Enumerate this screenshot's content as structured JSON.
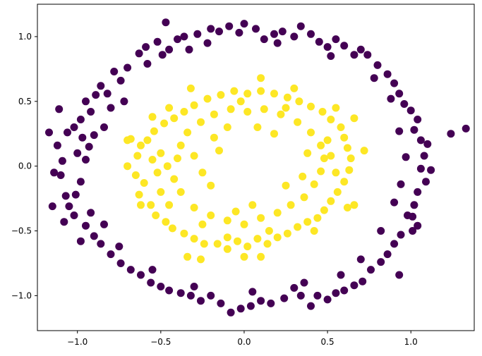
{
  "chart_data": {
    "type": "scatter",
    "title": "",
    "xlabel": "",
    "ylabel": "",
    "xlim": [
      -1.24,
      1.38
    ],
    "ylim": [
      -1.27,
      1.25
    ],
    "grid": false,
    "legend": "none",
    "x_ticks": [
      -1.0,
      -0.5,
      0.0,
      0.5,
      1.0
    ],
    "x_tick_labels": [
      "−1.0",
      "−0.5",
      "0.0",
      "0.5",
      "1.0"
    ],
    "y_ticks": [
      -1.0,
      -0.5,
      0.0,
      0.5,
      1.0
    ],
    "y_tick_labels": [
      "−1.0",
      "−0.5",
      "0.0",
      "0.5",
      "1.0"
    ],
    "series": [
      {
        "color": "#440154",
        "points": [
          [
            -1.17,
            0.26
          ],
          [
            -1.12,
            0.16
          ],
          [
            -1.09,
            0.04
          ],
          [
            -1.1,
            -0.07
          ],
          [
            -1.07,
            -0.23
          ],
          [
            -1.15,
            -0.31
          ],
          [
            -1.14,
            -0.05
          ],
          [
            -1.05,
            -0.31
          ],
          [
            -1.02,
            -0.38
          ],
          [
            -1.08,
            -0.43
          ],
          [
            -1.01,
            -0.22
          ],
          [
            -0.98,
            -0.12
          ],
          [
            -0.95,
            0.05
          ],
          [
            -0.93,
            0.15
          ],
          [
            -1.06,
            0.26
          ],
          [
            -1.02,
            0.3
          ],
          [
            -0.98,
            0.36
          ],
          [
            -0.92,
            0.42
          ],
          [
            -1.11,
            0.44
          ],
          [
            -0.95,
            0.5
          ],
          [
            -0.89,
            0.55
          ],
          [
            -0.86,
            0.62
          ],
          [
            -0.82,
            0.56
          ],
          [
            -0.78,
            0.73
          ],
          [
            -0.74,
            0.66
          ],
          [
            -0.7,
            0.76
          ],
          [
            -0.63,
            0.87
          ],
          [
            -0.59,
            0.92
          ],
          [
            -0.52,
            0.96
          ],
          [
            -0.49,
            0.86
          ],
          [
            -0.47,
            1.11
          ],
          [
            -0.4,
            0.98
          ],
          [
            -0.36,
            1.0
          ],
          [
            -0.33,
            0.9
          ],
          [
            -0.28,
            1.02
          ],
          [
            -0.2,
            1.06
          ],
          [
            -0.15,
            1.04
          ],
          [
            -0.09,
            1.08
          ],
          [
            -0.03,
            1.03
          ],
          [
            0.0,
            1.1
          ],
          [
            0.07,
            1.06
          ],
          [
            0.12,
            0.98
          ],
          [
            0.18,
            1.02
          ],
          [
            0.23,
            1.04
          ],
          [
            0.3,
            1.0
          ],
          [
            0.34,
            1.08
          ],
          [
            0.4,
            1.02
          ],
          [
            0.45,
            0.96
          ],
          [
            0.5,
            0.92
          ],
          [
            0.55,
            0.98
          ],
          [
            0.6,
            0.93
          ],
          [
            0.66,
            0.86
          ],
          [
            0.7,
            0.9
          ],
          [
            0.74,
            0.86
          ],
          [
            0.8,
            0.78
          ],
          [
            0.86,
            0.71
          ],
          [
            0.9,
            0.64
          ],
          [
            0.93,
            0.56
          ],
          [
            0.96,
            0.48
          ],
          [
            1.0,
            0.43
          ],
          [
            1.04,
            0.36
          ],
          [
            1.02,
            0.28
          ],
          [
            1.06,
            0.2
          ],
          [
            1.1,
            0.17
          ],
          [
            1.08,
            0.08
          ],
          [
            1.06,
            -0.02
          ],
          [
            1.12,
            -0.03
          ],
          [
            1.09,
            -0.12
          ],
          [
            1.04,
            -0.2
          ],
          [
            1.02,
            -0.3
          ],
          [
            1.01,
            -0.39
          ],
          [
            1.04,
            -0.46
          ],
          [
            1.01,
            -0.5
          ],
          [
            0.98,
            -0.38
          ],
          [
            0.94,
            -0.53
          ],
          [
            0.9,
            -0.6
          ],
          [
            0.86,
            -0.68
          ],
          [
            0.82,
            -0.74
          ],
          [
            0.76,
            -0.8
          ],
          [
            0.71,
            -0.89
          ],
          [
            0.66,
            -0.92
          ],
          [
            0.6,
            -0.96
          ],
          [
            0.55,
            -0.98
          ],
          [
            0.5,
            -1.03
          ],
          [
            0.44,
            -1.0
          ],
          [
            0.4,
            -1.08
          ],
          [
            0.34,
            -1.0
          ],
          [
            0.3,
            -0.94
          ],
          [
            0.24,
            -1.02
          ],
          [
            0.16,
            -1.06
          ],
          [
            0.1,
            -1.04
          ],
          [
            0.04,
            -1.08
          ],
          [
            -0.02,
            -1.1
          ],
          [
            -0.08,
            -1.13
          ],
          [
            -0.14,
            -1.06
          ],
          [
            -0.2,
            -1.0
          ],
          [
            -0.26,
            -1.04
          ],
          [
            -0.32,
            -1.0
          ],
          [
            -0.38,
            -0.98
          ],
          [
            -0.45,
            -0.96
          ],
          [
            -0.5,
            -0.93
          ],
          [
            -0.56,
            -0.9
          ],
          [
            -0.62,
            -0.84
          ],
          [
            -0.68,
            -0.8
          ],
          [
            -0.74,
            -0.75
          ],
          [
            -0.8,
            -0.68
          ],
          [
            -0.86,
            -0.6
          ],
          [
            -0.9,
            -0.54
          ],
          [
            -0.95,
            -0.46
          ],
          [
            -0.98,
            -0.58
          ],
          [
            -0.92,
            -0.36
          ],
          [
            -1.0,
            0.1
          ],
          [
            -0.97,
            0.22
          ],
          [
            -0.9,
            0.24
          ],
          [
            -0.84,
            0.3
          ],
          [
            -0.8,
            0.45
          ],
          [
            -0.72,
            0.5
          ],
          [
            -0.58,
            0.79
          ],
          [
            -0.45,
            0.9
          ],
          [
            -0.22,
            0.95
          ],
          [
            0.2,
            0.95
          ],
          [
            0.52,
            0.85
          ],
          [
            0.78,
            0.68
          ],
          [
            0.88,
            0.52
          ],
          [
            0.93,
            0.27
          ],
          [
            0.97,
            0.07
          ],
          [
            0.94,
            -0.14
          ],
          [
            0.9,
            -0.28
          ],
          [
            0.82,
            -0.5
          ],
          [
            0.7,
            -0.72
          ],
          [
            0.58,
            -0.84
          ],
          [
            0.36,
            -0.9
          ],
          [
            0.05,
            -0.97
          ],
          [
            -0.3,
            -0.93
          ],
          [
            -0.55,
            -0.8
          ],
          [
            -0.75,
            -0.62
          ],
          [
            -0.84,
            -0.45
          ],
          [
            1.24,
            0.25
          ],
          [
            1.33,
            0.29
          ],
          [
            0.93,
            -0.84
          ]
        ]
      },
      {
        "color": "#fde725",
        "points": [
          [
            -0.68,
            0.21
          ],
          [
            -0.62,
            0.16
          ],
          [
            -0.64,
            0.08
          ],
          [
            -0.7,
            0.0
          ],
          [
            -0.65,
            -0.07
          ],
          [
            -0.6,
            -0.13
          ],
          [
            -0.63,
            -0.22
          ],
          [
            -0.56,
            -0.3
          ],
          [
            -0.53,
            -0.38
          ],
          [
            -0.47,
            -0.43
          ],
          [
            -0.43,
            -0.48
          ],
          [
            -0.36,
            -0.52
          ],
          [
            -0.3,
            -0.56
          ],
          [
            -0.24,
            -0.6
          ],
          [
            -0.16,
            -0.6
          ],
          [
            -0.1,
            -0.64
          ],
          [
            -0.04,
            -0.58
          ],
          [
            0.02,
            -0.62
          ],
          [
            0.08,
            -0.56
          ],
          [
            0.14,
            -0.6
          ],
          [
            0.2,
            -0.55
          ],
          [
            0.26,
            -0.52
          ],
          [
            0.32,
            -0.47
          ],
          [
            0.38,
            -0.43
          ],
          [
            0.44,
            -0.4
          ],
          [
            0.48,
            -0.34
          ],
          [
            0.52,
            -0.27
          ],
          [
            0.56,
            -0.2
          ],
          [
            0.6,
            -0.12
          ],
          [
            0.63,
            -0.03
          ],
          [
            0.64,
            0.06
          ],
          [
            0.62,
            0.14
          ],
          [
            0.6,
            0.22
          ],
          [
            0.58,
            0.3
          ],
          [
            0.52,
            0.36
          ],
          [
            0.47,
            0.42
          ],
          [
            0.4,
            0.46
          ],
          [
            0.33,
            0.5
          ],
          [
            0.26,
            0.53
          ],
          [
            0.18,
            0.56
          ],
          [
            0.1,
            0.58
          ],
          [
            0.02,
            0.56
          ],
          [
            -0.06,
            0.58
          ],
          [
            -0.14,
            0.55
          ],
          [
            -0.22,
            0.52
          ],
          [
            -0.3,
            0.47
          ],
          [
            -0.36,
            0.42
          ],
          [
            -0.42,
            0.37
          ],
          [
            -0.48,
            0.33
          ],
          [
            -0.54,
            0.27
          ],
          [
            -0.58,
            0.2
          ],
          [
            -0.5,
            0.1
          ],
          [
            -0.46,
            0.0
          ],
          [
            -0.42,
            -0.1
          ],
          [
            -0.38,
            -0.2
          ],
          [
            -0.3,
            -0.32
          ],
          [
            -0.2,
            -0.38
          ],
          [
            -0.1,
            -0.42
          ],
          [
            0.0,
            -0.45
          ],
          [
            0.1,
            -0.4
          ],
          [
            0.2,
            -0.36
          ],
          [
            0.28,
            -0.3
          ],
          [
            0.36,
            -0.24
          ],
          [
            0.42,
            -0.14
          ],
          [
            0.46,
            -0.04
          ],
          [
            0.48,
            0.06
          ],
          [
            0.46,
            0.16
          ],
          [
            0.4,
            0.26
          ],
          [
            0.32,
            0.34
          ],
          [
            0.22,
            0.4
          ],
          [
            0.12,
            0.44
          ],
          [
            0.02,
            0.42
          ],
          [
            -0.08,
            0.44
          ],
          [
            -0.18,
            0.4
          ],
          [
            -0.26,
            0.34
          ],
          [
            -0.34,
            0.26
          ],
          [
            -0.38,
            0.16
          ],
          [
            -0.4,
            0.06
          ],
          [
            -0.3,
            0.08
          ],
          [
            -0.25,
            -0.05
          ],
          [
            -0.2,
            -0.15
          ],
          [
            -0.55,
            0.05
          ],
          [
            -0.52,
            -0.05
          ],
          [
            -0.5,
            -0.2
          ],
          [
            0.55,
            -0.05
          ],
          [
            0.52,
            0.08
          ],
          [
            0.5,
            0.2
          ],
          [
            0.1,
            0.68
          ],
          [
            -0.32,
            0.6
          ],
          [
            0.66,
            -0.3
          ],
          [
            0.72,
            0.12
          ],
          [
            0.62,
            -0.32
          ],
          [
            0.66,
            0.37
          ],
          [
            -0.34,
            -0.7
          ],
          [
            -0.26,
            -0.72
          ],
          [
            0.0,
            -0.7
          ],
          [
            0.1,
            -0.7
          ],
          [
            -0.1,
            -0.55
          ],
          [
            0.3,
            0.6
          ],
          [
            -0.45,
            0.45
          ],
          [
            -0.7,
            0.2
          ],
          [
            -0.18,
            0.22
          ],
          [
            -0.15,
            0.12
          ],
          [
            0.38,
            0.1
          ],
          [
            0.35,
            -0.08
          ],
          [
            0.25,
            -0.15
          ],
          [
            -0.45,
            -0.3
          ],
          [
            -0.62,
            -0.3
          ],
          [
            0.42,
            -0.5
          ],
          [
            0.05,
            -0.3
          ],
          [
            -0.05,
            -0.35
          ],
          [
            0.15,
            -0.5
          ],
          [
            -0.25,
            -0.45
          ],
          [
            0.25,
            0.45
          ],
          [
            -0.1,
            0.3
          ],
          [
            0.08,
            0.3
          ],
          [
            0.18,
            0.25
          ],
          [
            -0.02,
            0.5
          ],
          [
            -0.55,
            0.38
          ],
          [
            0.55,
            0.45
          ]
        ]
      }
    ]
  }
}
